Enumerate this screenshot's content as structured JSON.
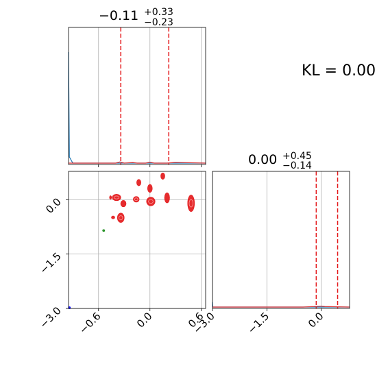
{
  "figure": {
    "kl_label": "KL = 0.00"
  },
  "chart_data": [
    {
      "type": "line",
      "panel": "marginal-x",
      "title": {
        "value": "−0.11",
        "upper": "+0.33",
        "lower": "−0.23"
      },
      "xlim": [
        -0.95,
        0.65
      ],
      "x_ticks": [
        -0.6,
        0.0,
        0.6
      ],
      "grid": true,
      "quantile_lines": [
        -0.34,
        0.22
      ],
      "series": [
        {
          "color": "#1f77b4",
          "x": [
            -0.95,
            -0.94,
            -0.9,
            -0.8,
            0.65
          ],
          "y": [
            0.9,
            0.05,
            0.0,
            0.0,
            0.0
          ]
        },
        {
          "color": "#d62728",
          "x": [
            -0.95,
            -0.4,
            -0.35,
            -0.3,
            -0.2,
            -0.15,
            -0.05,
            0.0,
            0.05,
            0.2,
            0.3,
            0.65
          ],
          "y": [
            0,
            0,
            0.01,
            0,
            0.005,
            0,
            0,
            0.008,
            0,
            0,
            0.006,
            0
          ]
        }
      ]
    },
    {
      "type": "line",
      "panel": "marginal-y",
      "title": {
        "value": "0.00",
        "upper": "+0.45",
        "lower": "−0.14"
      },
      "xlim": [
        -3.0,
        0.78
      ],
      "x_tick_labels": [
        "−3.0",
        "−1.5",
        "0.0"
      ],
      "x_ticks": [
        -3.0,
        -1.5,
        0.0
      ],
      "grid": true,
      "quantile_lines": [
        -0.14,
        0.45
      ],
      "series": [
        {
          "color": "#1f77b4",
          "x": [
            -3.0,
            -2.99,
            -2.98,
            0.78
          ],
          "y": [
            0.04,
            0.0,
            0.0,
            0.0
          ]
        },
        {
          "color": "#d62728",
          "x": [
            -3.0,
            -0.5,
            -0.2,
            -0.1,
            0.0,
            0.1,
            0.78
          ],
          "y": [
            0,
            0,
            0.004,
            0.006,
            0.008,
            0.004,
            0
          ]
        }
      ]
    },
    {
      "type": "scatter",
      "panel": "joint",
      "xlim": [
        -0.95,
        0.65
      ],
      "ylim": [
        -3.0,
        0.78
      ],
      "x_ticks": [
        -0.6,
        0.0,
        0.6
      ],
      "x_tick_labels": [
        "−0.6",
        "0.0",
        "0.6"
      ],
      "y_ticks": [
        -3.0,
        -1.5,
        0.0
      ],
      "y_tick_labels": [
        "−3.0",
        "−1.5",
        "0.0"
      ],
      "grid": true,
      "series": [
        {
          "color": "#e31a1c",
          "points": [
            {
              "x": 0.15,
              "y": 0.65,
              "rx": 0.024,
              "ry": 0.09
            },
            {
              "x": -0.13,
              "y": 0.47,
              "rx": 0.025,
              "ry": 0.09
            },
            {
              "x": 0.0,
              "y": 0.31,
              "rx": 0.028,
              "ry": 0.11
            },
            {
              "x": -0.39,
              "y": 0.06,
              "rx": 0.05,
              "ry": 0.09
            },
            {
              "x": -0.46,
              "y": 0.06,
              "rx": 0.012,
              "ry": 0.05
            },
            {
              "x": -0.31,
              "y": -0.11,
              "rx": 0.032,
              "ry": 0.09
            },
            {
              "x": -0.16,
              "y": 0.01,
              "rx": 0.035,
              "ry": 0.08
            },
            {
              "x": 0.01,
              "y": -0.05,
              "rx": 0.05,
              "ry": 0.12
            },
            {
              "x": 0.2,
              "y": 0.05,
              "rx": 0.03,
              "ry": 0.14
            },
            {
              "x": 0.48,
              "y": -0.1,
              "rx": 0.04,
              "ry": 0.23
            },
            {
              "x": -0.34,
              "y": -0.5,
              "rx": 0.04,
              "ry": 0.13
            },
            {
              "x": -0.43,
              "y": -0.49,
              "rx": 0.02,
              "ry": 0.04
            }
          ]
        },
        {
          "color": "#1a8c1a",
          "points": [
            {
              "x": -0.54,
              "y": -0.85,
              "rx": 0.013,
              "ry": 0.02
            }
          ]
        },
        {
          "color": "#0000ff",
          "points": [
            {
              "x": -0.94,
              "y": -2.98,
              "rx": 0.01,
              "ry": 0.03
            }
          ]
        }
      ]
    }
  ]
}
